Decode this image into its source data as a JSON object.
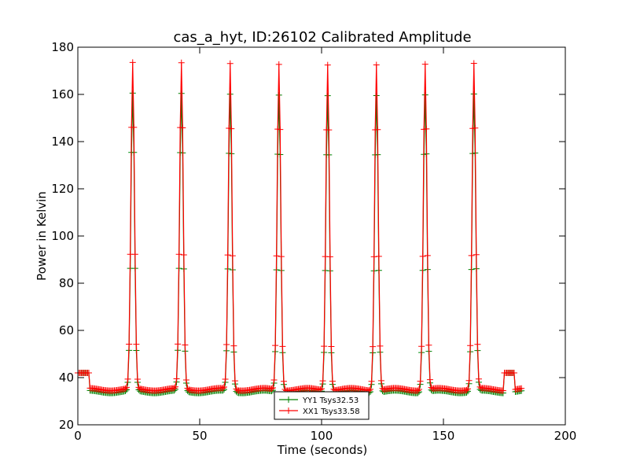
{
  "chart_data": {
    "type": "line",
    "title": "cas_a_hyt, ID:26102 Calibrated Amplitude",
    "xlabel": "Time (seconds)",
    "ylabel": "Power in Kelvin",
    "xlim": [
      0,
      200
    ],
    "ylim": [
      20,
      180
    ],
    "xticks": [
      0,
      50,
      100,
      150,
      200
    ],
    "yticks": [
      20,
      40,
      60,
      80,
      100,
      120,
      140,
      160,
      180
    ],
    "grid": false,
    "legend_position": "bottom-center",
    "marker": "plus",
    "series": [
      {
        "name": "YY1 Tsys32.53",
        "color": "#008000",
        "baseline": 34,
        "peak_height": 160,
        "cal_level": 42
      },
      {
        "name": "XX1 Tsys33.58",
        "color": "#ff0000",
        "baseline": 35,
        "peak_height": 173,
        "cal_level": 42
      }
    ],
    "peak_centers": [
      22.5,
      42.5,
      62.5,
      82.5,
      102.5,
      122.5,
      142.5,
      162.5
    ],
    "cal_segments": [
      [
        0,
        4.5
      ],
      [
        175,
        179
      ]
    ],
    "x_range": [
      0,
      182
    ]
  }
}
